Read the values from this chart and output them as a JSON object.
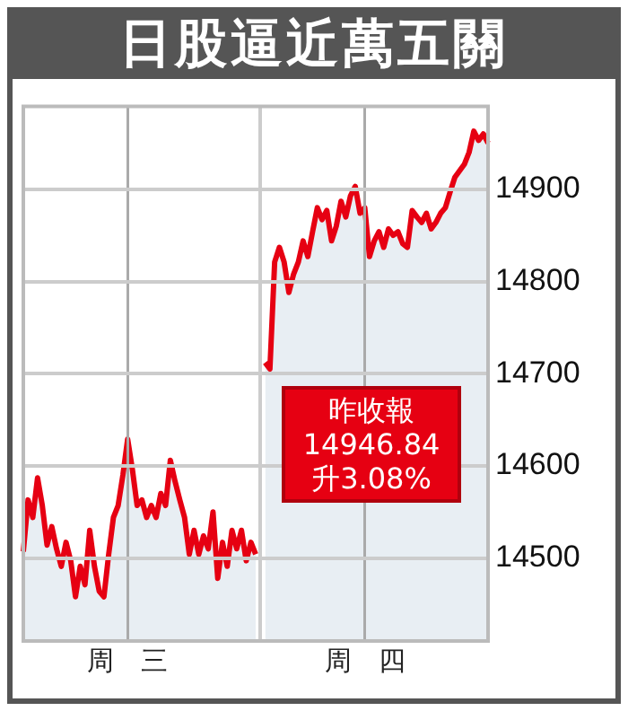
{
  "chart_data": {
    "type": "area",
    "title": "日股逼近萬五關",
    "categories": [
      null,
      null,
      null,
      null,
      null,
      null,
      null,
      null,
      null,
      null,
      null,
      null,
      null,
      null,
      null,
      null,
      null,
      null,
      null,
      null,
      null,
      null,
      "周　三",
      null,
      null,
      null,
      null,
      null,
      null,
      null,
      null,
      null,
      null,
      null,
      null,
      null,
      null,
      null,
      null,
      null,
      null,
      null,
      null,
      null,
      null,
      null,
      null,
      null,
      null,
      null,
      null,
      null,
      null,
      null,
      null,
      null,
      null,
      null,
      null,
      null,
      null,
      null,
      null,
      null,
      null,
      null,
      null,
      null,
      null,
      null,
      null,
      null,
      "周　四",
      null,
      null,
      null,
      null,
      null,
      null,
      null,
      null,
      null,
      null,
      null,
      null,
      null,
      null,
      null,
      null,
      null,
      null,
      null,
      null,
      null,
      null,
      null,
      null,
      null,
      null
    ],
    "ylim": [
      14410,
      14990
    ],
    "yticks": [
      14500,
      14600,
      14700,
      14800,
      14900
    ],
    "grid": true,
    "marker": "none",
    "annotations": [
      "昨收報",
      "14946.84",
      "升3.08%"
    ],
    "series": [
      {
        "color": "#e60012",
        "values": [
          14507,
          14563,
          14544,
          14587,
          14557,
          14514,
          14534,
          14510,
          14491,
          14517,
          14497,
          14458,
          14491,
          14471,
          14530,
          14491,
          14464,
          14458,
          14504,
          14544,
          14557,
          14590,
          14629,
          14596,
          14557,
          14563,
          14544,
          14557,
          14544,
          14570,
          14557,
          14606,
          14583,
          14563,
          14544,
          14504,
          14530,
          14504,
          14524,
          14510,
          14550,
          14478,
          14517,
          14491,
          14530,
          14510,
          14530,
          14497,
          14517,
          14504,
          null,
          null,
          null,
          null,
          null,
          null,
          null,
          null,
          null,
          null,
          null,
          null,
          null,
          null,
          null,
          null,
          null,
          null,
          null,
          null,
          null,
          null,
          null,
          null,
          null,
          null,
          null,
          null,
          null,
          null,
          null,
          null,
          null,
          null,
          null,
          null,
          null,
          null,
          null,
          null,
          null,
          null,
          null,
          null,
          null,
          null,
          null,
          null,
          null
        ]
      },
      {
        "color": "#e60012",
        "values": [
          null,
          null,
          null,
          null,
          null,
          null,
          null,
          null,
          null,
          null,
          null,
          null,
          null,
          null,
          null,
          null,
          null,
          null,
          null,
          null,
          null,
          null,
          null,
          null,
          null,
          null,
          null,
          null,
          null,
          null,
          null,
          null,
          null,
          null,
          null,
          null,
          null,
          null,
          null,
          null,
          null,
          null,
          null,
          null,
          null,
          null,
          null,
          null,
          null,
          null,
          null,
          14712,
          14705,
          14821,
          14837,
          14821,
          14788,
          14808,
          14821,
          14844,
          14827,
          14854,
          14880,
          14867,
          14877,
          14844,
          14860,
          14887,
          14870,
          14893,
          14903,
          14874,
          14880,
          14827,
          14844,
          14854,
          14837,
          14857,
          14850,
          14854,
          14841,
          14837,
          14877,
          14870,
          14864,
          14874,
          14857,
          14864,
          14874,
          14880,
          14897,
          14913,
          14920,
          14927,
          14940,
          14963,
          14953,
          14960,
          14950
        ]
      }
    ]
  }
}
